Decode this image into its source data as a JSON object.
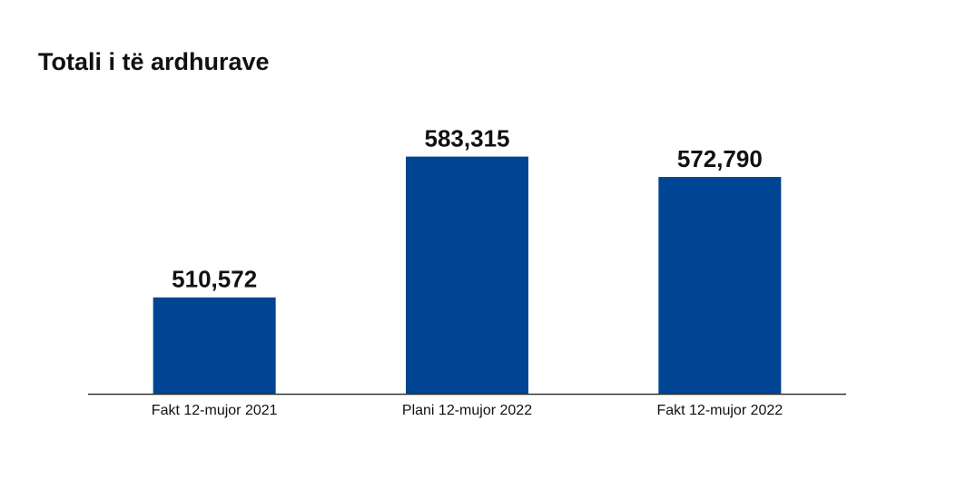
{
  "chart_data": {
    "type": "bar",
    "title": "Totali i të ardhurave",
    "categories": [
      "Fakt 12-mujor 2021",
      "Plani 12-mujor 2022",
      "Fakt 12-mujor 2022"
    ],
    "values": [
      510572,
      583315,
      572790
    ],
    "value_labels": [
      "510,572",
      "583,315",
      "572,790"
    ],
    "color": "#004494",
    "ylim": [
      460800,
      600000
    ]
  }
}
